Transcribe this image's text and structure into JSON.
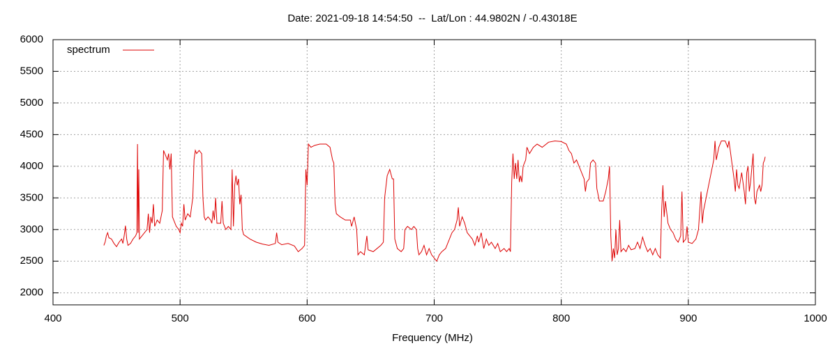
{
  "chart_data": {
    "type": "line",
    "title": "Date: 2021-09-18 14:54:50  --  Lat/Lon : 44.9802N / -0.43018E",
    "x_label": "Frequency (MHz)",
    "xlim": [
      400,
      1000
    ],
    "xticks": [
      400,
      500,
      600,
      700,
      800,
      900,
      1000
    ],
    "ylim": [
      1810,
      6000
    ],
    "yticks": [
      2000,
      2500,
      3000,
      3500,
      4000,
      4500,
      5000,
      5500,
      6000
    ],
    "grid": true,
    "legend": "top-left",
    "x": [
      440,
      441,
      442,
      443,
      444,
      446,
      448,
      450,
      452,
      454,
      455,
      456,
      457,
      458,
      459,
      461,
      463,
      465,
      466,
      466.5,
      467,
      467.5,
      468,
      470,
      472,
      474,
      475,
      476,
      477,
      478,
      479,
      480,
      482,
      484,
      486,
      487,
      488,
      489,
      490,
      491,
      492,
      493,
      494,
      495,
      497,
      499,
      500,
      501,
      502,
      503,
      504,
      506,
      508,
      510,
      511,
      512,
      513,
      515,
      517,
      518,
      519,
      520,
      522,
      524,
      525,
      526,
      527,
      528,
      529,
      532,
      533,
      534,
      536,
      538,
      540,
      541,
      542,
      543,
      544,
      545,
      546,
      547,
      548,
      549,
      550,
      555,
      560,
      565,
      570,
      575,
      576,
      577,
      580,
      585,
      590,
      593,
      596,
      598,
      599,
      600,
      601,
      603,
      606,
      610,
      615,
      618,
      620,
      621,
      622,
      623,
      626,
      630,
      634,
      635,
      637,
      638,
      639,
      640,
      642,
      645,
      647,
      648,
      652,
      655,
      658,
      660,
      661,
      663,
      665,
      667,
      668,
      669,
      671,
      674,
      676,
      677,
      679,
      682,
      684,
      686,
      687,
      688,
      690,
      692,
      694,
      696,
      698,
      700,
      702,
      704,
      706,
      709,
      712,
      714,
      716,
      718,
      719,
      720,
      722,
      724,
      726,
      728,
      730,
      732,
      734,
      735,
      737,
      739,
      741,
      743,
      745,
      748,
      750,
      752,
      755,
      757,
      759,
      760,
      761,
      762,
      763,
      764,
      765,
      766,
      767,
      768,
      769,
      770,
      772,
      773,
      775,
      778,
      781,
      785,
      790,
      795,
      800,
      804,
      806,
      808,
      810,
      812,
      814,
      816,
      818,
      819,
      820,
      822,
      823,
      825,
      827,
      828,
      830,
      833,
      835,
      837,
      838,
      839,
      840,
      841,
      842,
      843,
      844,
      845,
      846,
      847,
      849,
      851,
      853,
      855,
      858,
      860,
      862,
      864,
      866,
      868,
      870,
      872,
      874,
      876,
      878,
      879,
      880,
      881,
      882,
      884,
      886,
      888,
      890,
      892,
      894,
      895,
      896,
      898,
      899,
      900,
      903,
      906,
      908,
      910,
      911,
      912,
      914,
      916,
      918,
      920,
      921,
      922,
      924,
      926,
      929,
      931,
      932,
      934,
      936,
      937,
      938,
      939,
      940,
      942,
      944,
      945,
      946,
      947,
      948,
      949,
      951,
      952,
      953,
      954,
      956,
      957,
      958,
      959,
      960,
      960.5
    ],
    "series": [
      {
        "name": "spectrum",
        "color": "#dd0000",
        "values": [
          2750,
          2800,
          2900,
          2950,
          2870,
          2850,
          2780,
          2730,
          2800,
          2850,
          2780,
          2900,
          3060,
          2850,
          2750,
          2780,
          2850,
          2900,
          2950,
          4350,
          2950,
          3950,
          2850,
          2900,
          2950,
          3000,
          3250,
          2950,
          3200,
          3100,
          3400,
          3050,
          3150,
          3100,
          3300,
          4250,
          4200,
          4150,
          4100,
          4200,
          3950,
          4200,
          3200,
          3150,
          3050,
          3000,
          2950,
          3100,
          3050,
          3400,
          3150,
          3250,
          3200,
          3500,
          4100,
          4250,
          4200,
          4250,
          4200,
          3500,
          3200,
          3150,
          3200,
          3150,
          3100,
          3300,
          3150,
          3500,
          3100,
          3100,
          3450,
          3100,
          3000,
          3050,
          3000,
          3950,
          3050,
          3700,
          3850,
          3700,
          3800,
          3400,
          3550,
          3000,
          2920,
          2850,
          2800,
          2770,
          2750,
          2780,
          2950,
          2800,
          2760,
          2780,
          2740,
          2650,
          2700,
          2750,
          3950,
          3700,
          4350,
          4300,
          4330,
          4350,
          4350,
          4300,
          4100,
          4050,
          3400,
          3250,
          3200,
          3150,
          3150,
          3050,
          3200,
          3100,
          3000,
          2600,
          2650,
          2600,
          2900,
          2680,
          2650,
          2700,
          2750,
          2800,
          3500,
          3850,
          3950,
          3800,
          3800,
          2850,
          2700,
          2650,
          2700,
          3000,
          3050,
          3000,
          3050,
          3000,
          2700,
          2600,
          2650,
          2750,
          2600,
          2700,
          2600,
          2550,
          2500,
          2600,
          2650,
          2700,
          2850,
          2950,
          3000,
          3150,
          3350,
          3050,
          3200,
          3100,
          2950,
          2900,
          2850,
          2750,
          2900,
          2800,
          2950,
          2700,
          2850,
          2750,
          2800,
          2700,
          2780,
          2650,
          2700,
          2650,
          2700,
          2650,
          3750,
          4200,
          3800,
          4050,
          3800,
          4100,
          3750,
          3850,
          3750,
          4000,
          4100,
          4300,
          4200,
          4300,
          4350,
          4300,
          4380,
          4400,
          4390,
          4350,
          4250,
          4200,
          4050,
          4100,
          4000,
          3900,
          3800,
          3600,
          3750,
          3800,
          4050,
          4100,
          4050,
          3650,
          3450,
          3450,
          3600,
          3800,
          4000,
          2900,
          2500,
          2700,
          2550,
          3000,
          2600,
          2700,
          3150,
          2650,
          2700,
          2650,
          2750,
          2680,
          2700,
          2800,
          2700,
          2880,
          2750,
          2650,
          2700,
          2600,
          2700,
          2600,
          2550,
          3300,
          3700,
          3200,
          3450,
          3100,
          3000,
          2950,
          2850,
          2800,
          2900,
          3600,
          2800,
          2850,
          3050,
          2800,
          2780,
          2850,
          3000,
          3600,
          3100,
          3300,
          3500,
          3700,
          3900,
          4100,
          4400,
          4100,
          4300,
          4400,
          4400,
          4300,
          4400,
          4100,
          3800,
          3600,
          3950,
          3700,
          3650,
          3900,
          3600,
          3400,
          3900,
          4000,
          3600,
          3750,
          4200,
          3500,
          3400,
          3600,
          3700,
          3600,
          3700,
          4050,
          4100,
          4150
        ]
      }
    ]
  }
}
